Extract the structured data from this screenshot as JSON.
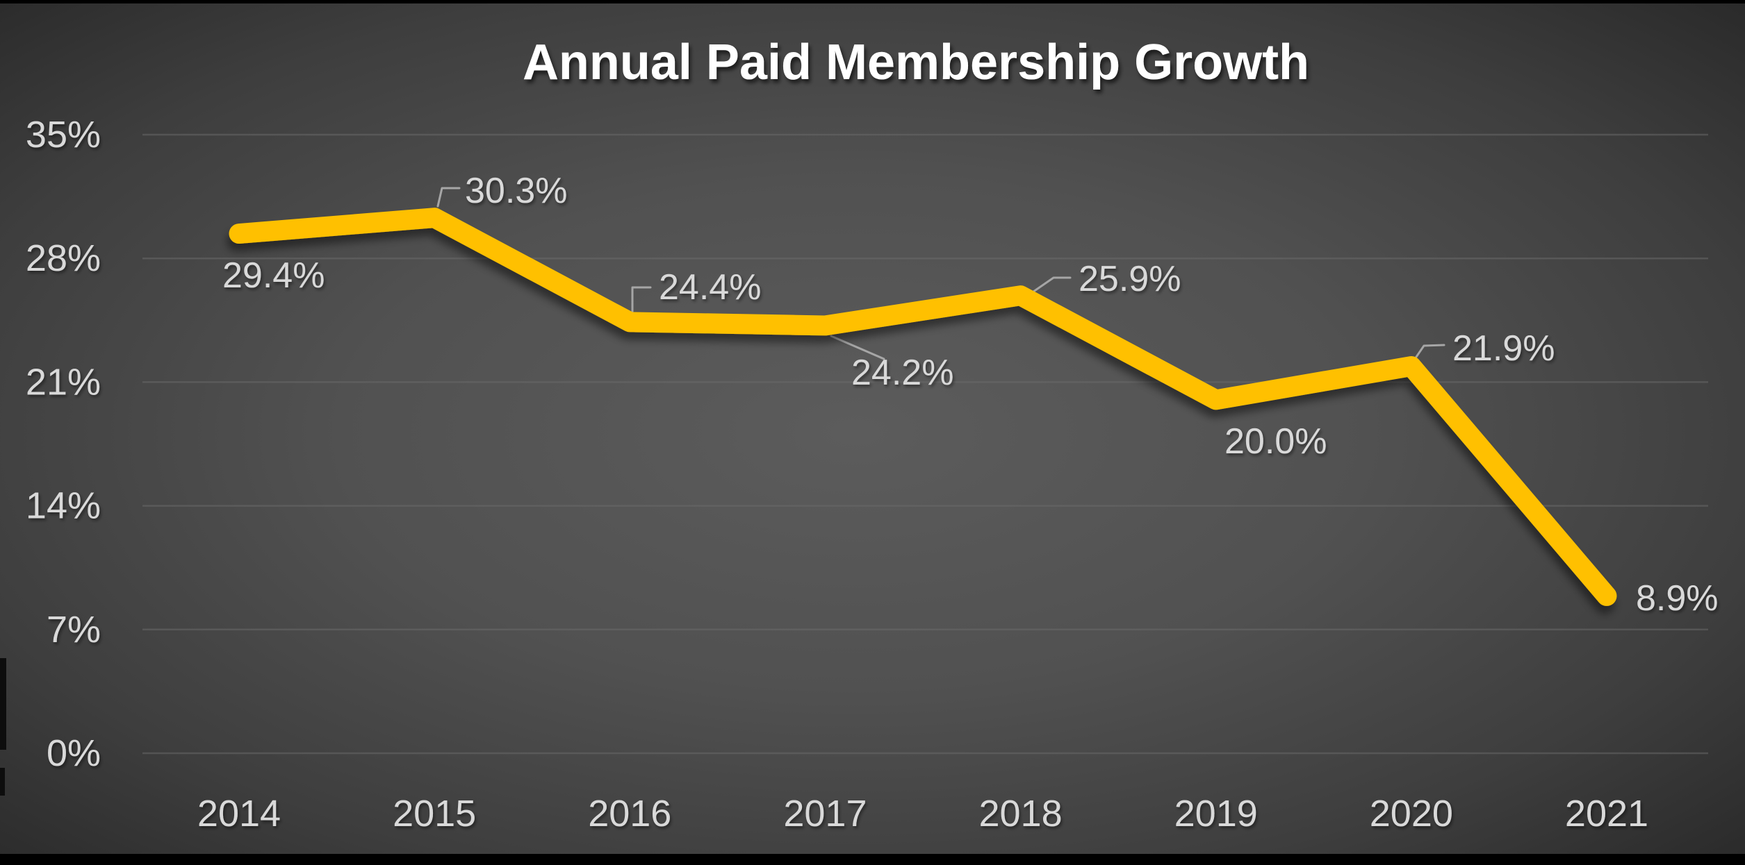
{
  "chart_data": {
    "type": "line",
    "title": "Annual Paid Membership Growth",
    "categories": [
      "2014",
      "2015",
      "2016",
      "2017",
      "2018",
      "2019",
      "2020",
      "2021"
    ],
    "values": [
      29.4,
      30.3,
      24.4,
      24.2,
      25.9,
      20.0,
      21.9,
      8.9
    ],
    "data_labels": [
      "29.4%",
      "30.3%",
      "24.4%",
      "24.2%",
      "25.9%",
      "20.0%",
      "21.9%",
      "8.9%"
    ],
    "xlabel": "",
    "ylabel": "",
    "y_axis": {
      "tick_labels": [
        "0%",
        "7%",
        "14%",
        "21%",
        "28%",
        "35%"
      ],
      "tick_values": [
        0,
        7,
        14,
        21,
        28,
        35
      ],
      "min": 0,
      "max": 35
    },
    "grid": "horizontal",
    "legend": "none",
    "colors": {
      "line": "#FFC000",
      "data_label": "#D9D9D9",
      "axis_label": "#D9D9D9",
      "title": "#FFFFFF",
      "gridline": "#6B6B6B",
      "leader_line": "#A6A6A6",
      "background_center": "#5C5C5C",
      "background_edge": "#272727",
      "letterbox": "#000000"
    }
  }
}
